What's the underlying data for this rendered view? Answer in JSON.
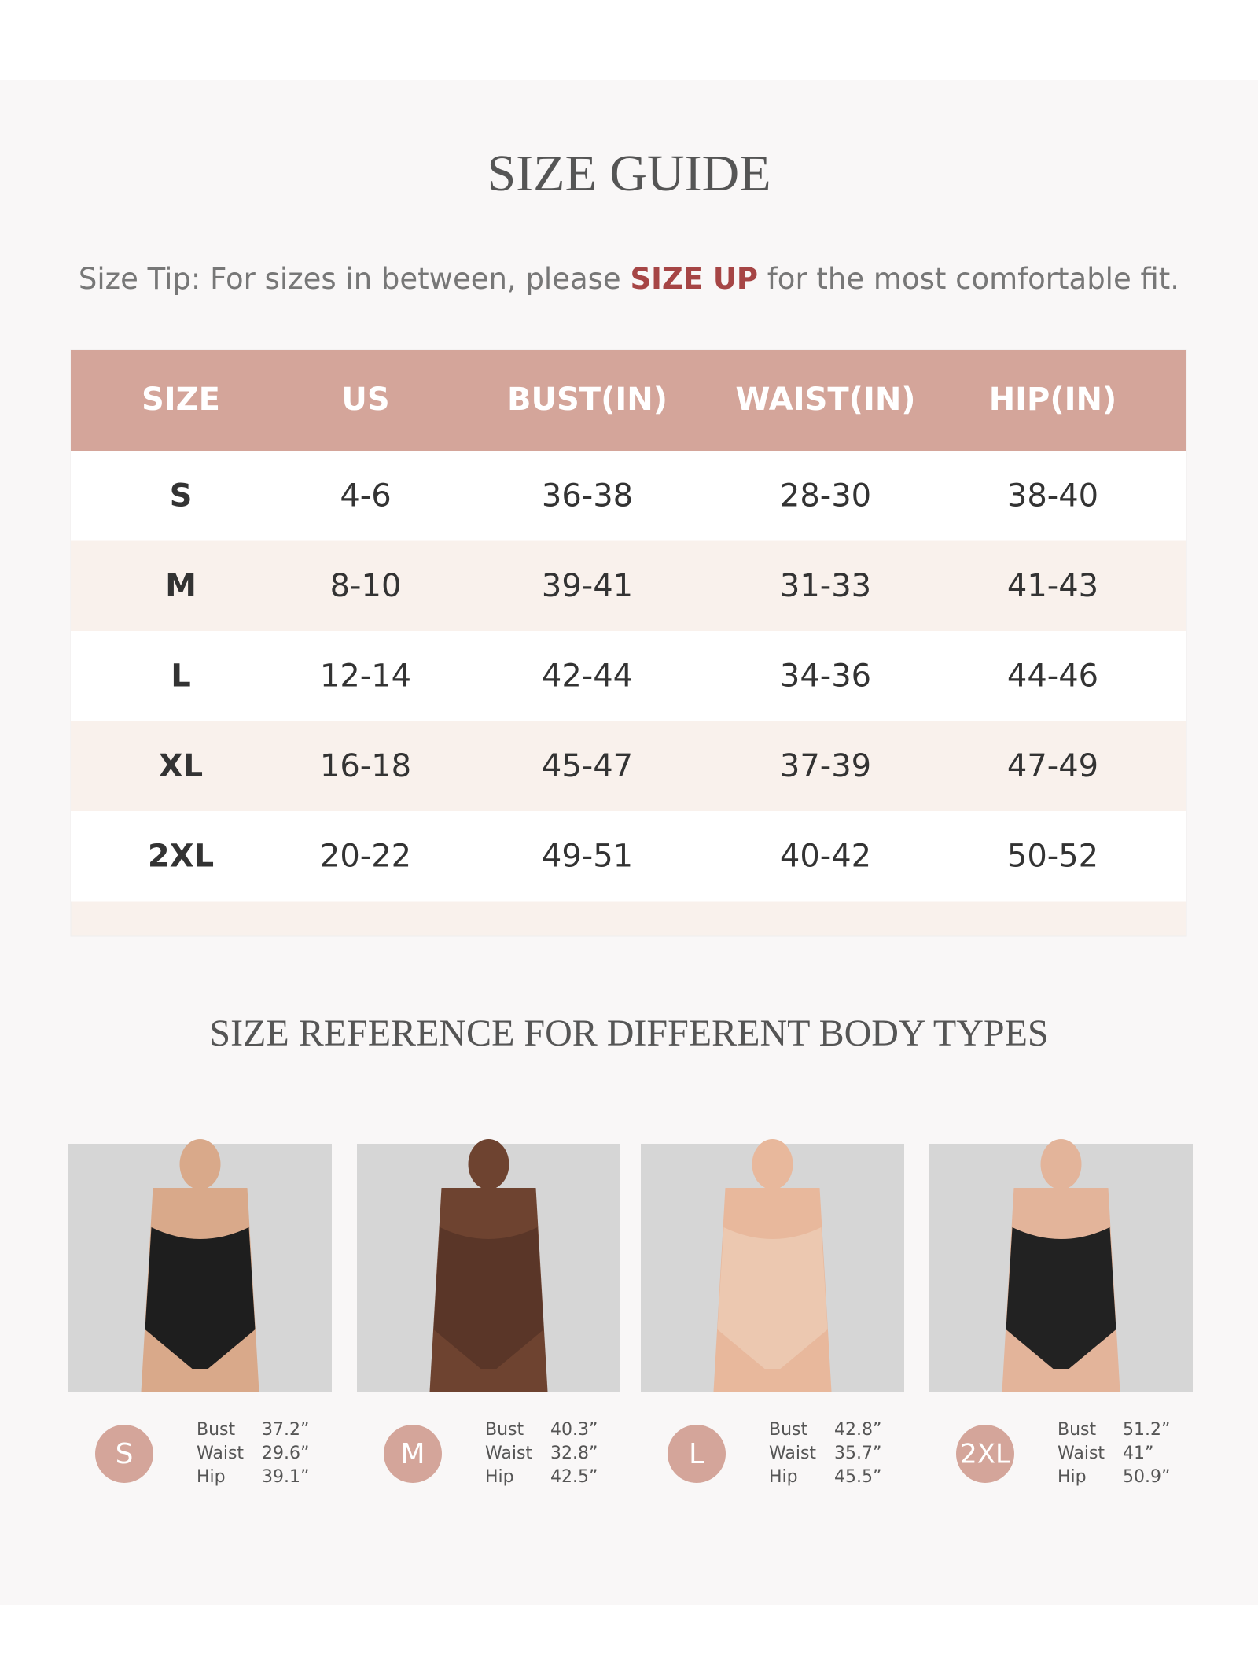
{
  "header": {
    "title": "SIZE GUIDE"
  },
  "tip": {
    "before": "Size Tip: For sizes in between, please ",
    "highlight": "SIZE UP",
    "after": " for the most comfortable fit."
  },
  "table": {
    "columns": [
      "SIZE",
      "US",
      "BUST(IN)",
      "WAIST(IN)",
      "HIP(IN)"
    ],
    "rows": [
      [
        "S",
        "4-6",
        "36-38",
        "28-30",
        "38-40"
      ],
      [
        "M",
        "8-10",
        "39-41",
        "31-33",
        "41-43"
      ],
      [
        "L",
        "12-14",
        "42-44",
        "34-36",
        "44-46"
      ],
      [
        "XL",
        "16-18",
        "45-47",
        "37-39",
        "47-49"
      ],
      [
        "2XL",
        "20-22",
        "49-51",
        "40-42",
        "50-52"
      ]
    ]
  },
  "reference": {
    "title": "SIZE REFERENCE FOR DIFFERENT BODY TYPES",
    "items": [
      {
        "size": "S",
        "measurements": [
          {
            "label": "Bust",
            "value": "37.2”"
          },
          {
            "label": "Waist",
            "value": "29.6”"
          },
          {
            "label": "Hip",
            "value": "39.1”"
          }
        ]
      },
      {
        "size": "M",
        "measurements": [
          {
            "label": "Bust",
            "value": "40.3”"
          },
          {
            "label": "Waist",
            "value": "32.8”"
          },
          {
            "label": "Hip",
            "value": "42.5”"
          }
        ]
      },
      {
        "size": "L",
        "measurements": [
          {
            "label": "Bust",
            "value": "42.8”"
          },
          {
            "label": "Waist",
            "value": "35.7”"
          },
          {
            "label": "Hip",
            "value": "45.5”"
          }
        ]
      },
      {
        "size": "2XL",
        "measurements": [
          {
            "label": "Bust",
            "value": "51.2”"
          },
          {
            "label": "Waist",
            "value": "41”"
          },
          {
            "label": "Hip",
            "value": "50.9”"
          }
        ]
      }
    ]
  }
}
